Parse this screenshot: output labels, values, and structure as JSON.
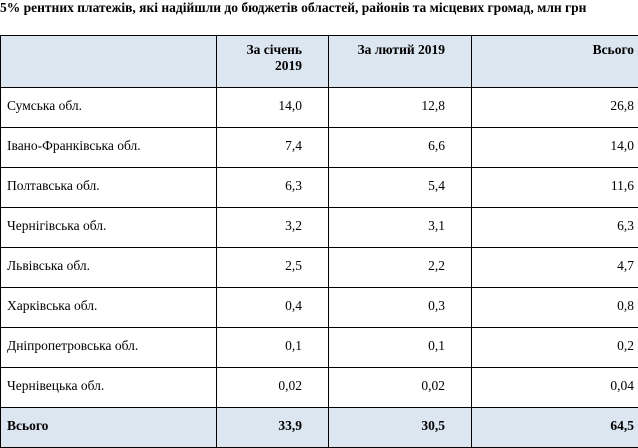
{
  "title": "5% рентних платежів, які надійшли до бюджетів областей, районів та місцевих громад, млн грн",
  "table": {
    "headers": [
      "",
      "За січень 2019",
      "За лютий 2019",
      "Всього"
    ],
    "rows": [
      {
        "name": "Сумська обл.",
        "jan": "14,0",
        "feb": "12,8",
        "total": "26,8"
      },
      {
        "name": "Івано-Франківська обл.",
        "jan": "7,4",
        "feb": "6,6",
        "total": "14,0"
      },
      {
        "name": "Полтавська обл.",
        "jan": "6,3",
        "feb": "5,4",
        "total": "11,6"
      },
      {
        "name": "Чернігівська обл.",
        "jan": "3,2",
        "feb": "3,1",
        "total": "6,3"
      },
      {
        "name": "Львівська обл.",
        "jan": "2,5",
        "feb": "2,2",
        "total": "4,7"
      },
      {
        "name": "Харківська обл.",
        "jan": "0,4",
        "feb": "0,3",
        "total": "0,8"
      },
      {
        "name": "Дніпропетровська обл.",
        "jan": "0,1",
        "feb": "0,1",
        "total": "0,2"
      },
      {
        "name": "Чернівецька обл.",
        "jan": "0,02",
        "feb": "0,02",
        "total": "0,04"
      }
    ],
    "total_row": {
      "name": "Всього",
      "jan": "33,9",
      "feb": "30,5",
      "total": "64,5"
    }
  }
}
